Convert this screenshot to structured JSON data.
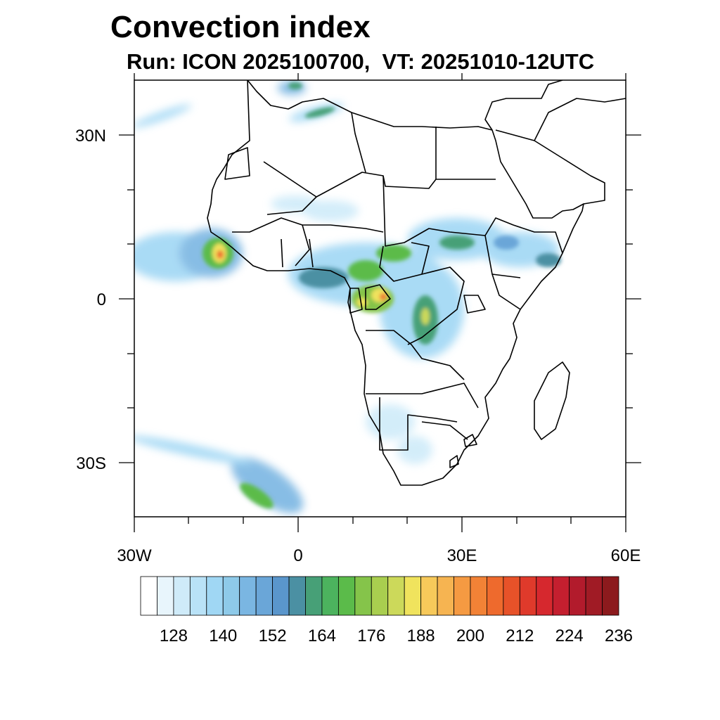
{
  "title": "Convection index",
  "subtitle": "Run: ICON 2025100700,  VT: 20251010-12UTC",
  "axes": {
    "lon_labels": [
      "30W",
      "0",
      "30E",
      "60E"
    ],
    "lat_labels": [
      "30N",
      "0",
      "30S"
    ]
  },
  "colorbar": {
    "tick_labels": [
      "128",
      "140",
      "152",
      "164",
      "176",
      "188",
      "200",
      "212",
      "224",
      "236"
    ],
    "colors": [
      "#ffffff",
      "#e8f5fc",
      "#cfebf9",
      "#b9e2f7",
      "#a0d7f4",
      "#8ecae9",
      "#7ab6e2",
      "#6aa6d8",
      "#5a96cc",
      "#4b90a3",
      "#47a077",
      "#4cb35e",
      "#5bbb4a",
      "#85c44a",
      "#a9ce4f",
      "#ccd95a",
      "#f0e35d",
      "#f7c95a",
      "#f6b451",
      "#f59a42",
      "#f28236",
      "#ee6a2d",
      "#e75229",
      "#df3a2b",
      "#d6282e",
      "#c41f2f",
      "#b21b2c",
      "#a01b25",
      "#8c1a1d"
    ]
  }
}
